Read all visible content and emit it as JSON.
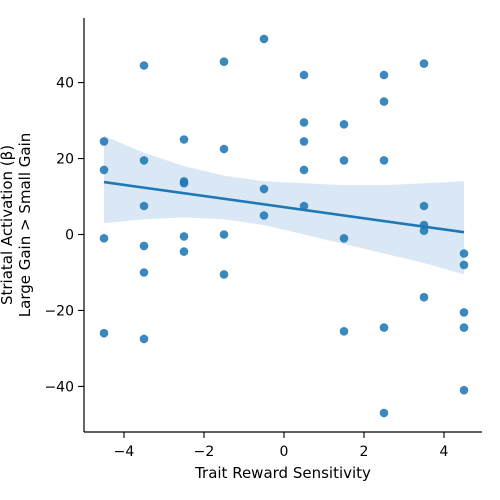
{
  "chart_data": {
    "type": "scatter",
    "xlabel": "Trait Reward Sensitivity",
    "ylabel_lines": [
      "Striatal Activation (β)",
      "Large Gain > Small Gain"
    ],
    "xlim": [
      -5.0,
      4.95
    ],
    "ylim": [
      -52.0,
      57.0
    ],
    "xticks": [
      -4,
      -2,
      0,
      2,
      4
    ],
    "xtick_labels": [
      "−4",
      "−2",
      "0",
      "2",
      "4"
    ],
    "yticks": [
      -40,
      -20,
      0,
      20,
      40
    ],
    "ytick_labels": [
      "−40",
      "−20",
      "0",
      "20",
      "40"
    ],
    "grid": false,
    "colors": {
      "points": "#1f77b4",
      "regression_line": "#1f77b4",
      "confidence_band": "#c6dbef"
    },
    "points": [
      {
        "x": -4.5,
        "y": 24.5
      },
      {
        "x": -4.5,
        "y": 17.0
      },
      {
        "x": -4.5,
        "y": -1.0
      },
      {
        "x": -4.5,
        "y": -26.0
      },
      {
        "x": -3.5,
        "y": 44.5
      },
      {
        "x": -3.5,
        "y": 19.5
      },
      {
        "x": -3.5,
        "y": 7.5
      },
      {
        "x": -3.5,
        "y": -3.0
      },
      {
        "x": -3.5,
        "y": -10.0
      },
      {
        "x": -3.5,
        "y": -27.5
      },
      {
        "x": -2.5,
        "y": 25.0
      },
      {
        "x": -2.5,
        "y": 14.0
      },
      {
        "x": -2.5,
        "y": 13.5
      },
      {
        "x": -2.5,
        "y": -0.5
      },
      {
        "x": -2.5,
        "y": -4.5
      },
      {
        "x": -1.5,
        "y": 45.5
      },
      {
        "x": -1.5,
        "y": 22.5
      },
      {
        "x": -1.5,
        "y": 0.0
      },
      {
        "x": -1.5,
        "y": -10.5
      },
      {
        "x": -0.5,
        "y": 51.5
      },
      {
        "x": -0.5,
        "y": 12.0
      },
      {
        "x": -0.5,
        "y": 5.0
      },
      {
        "x": 0.5,
        "y": 42.0
      },
      {
        "x": 0.5,
        "y": 29.5
      },
      {
        "x": 0.5,
        "y": 24.5
      },
      {
        "x": 0.5,
        "y": 17.0
      },
      {
        "x": 0.5,
        "y": 7.5
      },
      {
        "x": 1.5,
        "y": 29.0
      },
      {
        "x": 1.5,
        "y": 19.5
      },
      {
        "x": 1.5,
        "y": -1.0
      },
      {
        "x": 1.5,
        "y": -25.5
      },
      {
        "x": 2.5,
        "y": 42.0
      },
      {
        "x": 2.5,
        "y": 35.0
      },
      {
        "x": 2.5,
        "y": 19.5
      },
      {
        "x": 2.5,
        "y": -24.5
      },
      {
        "x": 2.5,
        "y": -47.0
      },
      {
        "x": 3.5,
        "y": 45.0
      },
      {
        "x": 3.5,
        "y": 7.5
      },
      {
        "x": 3.5,
        "y": 2.5
      },
      {
        "x": 3.5,
        "y": 1.0
      },
      {
        "x": 3.5,
        "y": -16.5
      },
      {
        "x": 4.5,
        "y": -5.0
      },
      {
        "x": 4.5,
        "y": -8.0
      },
      {
        "x": 4.5,
        "y": -20.5
      },
      {
        "x": 4.5,
        "y": -24.5
      },
      {
        "x": 4.5,
        "y": -41.0
      }
    ],
    "regression": {
      "x": [
        -4.5,
        4.5
      ],
      "y": [
        13.8,
        0.6
      ]
    },
    "confidence_band": {
      "x": [
        -4.5,
        -3.5,
        -2.5,
        -1.5,
        -0.5,
        0.5,
        1.5,
        2.5,
        3.5,
        4.5
      ],
      "upper": [
        26.0,
        21.5,
        18.0,
        15.5,
        14.0,
        13.5,
        13.0,
        13.0,
        13.5,
        14.0
      ],
      "lower": [
        3.0,
        4.0,
        4.5,
        4.0,
        2.5,
        0.0,
        -2.5,
        -5.0,
        -7.5,
        -10.5
      ]
    }
  }
}
